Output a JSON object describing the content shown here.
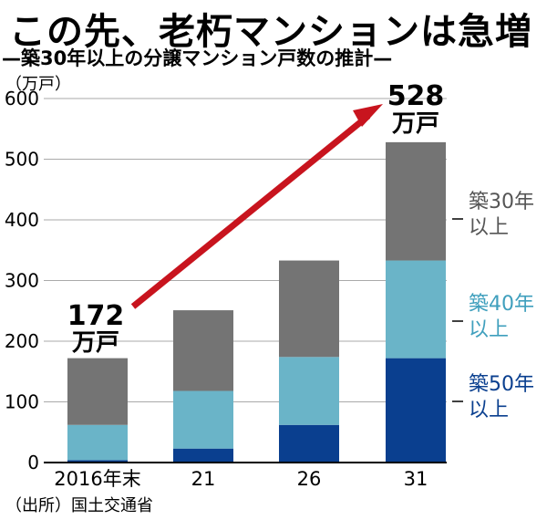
{
  "header": {
    "title": "この先、老朽マンションは急増",
    "subtitle": "—築30年以上の分譲マンション戸数の推計—",
    "unit": "（万戸）"
  },
  "source": "（出所）国土交通省",
  "chart_data": {
    "type": "bar",
    "stacked": true,
    "categories": [
      "2016年末",
      "21",
      "26",
      "31"
    ],
    "ylim": [
      0,
      600
    ],
    "yticks": [
      0,
      100,
      200,
      300,
      400,
      500,
      600
    ],
    "series": [
      {
        "name": "築50年以上",
        "values": [
          4,
          23,
          62,
          172
        ],
        "color": "#0a3f8f"
      },
      {
        "name": "築40年以上",
        "values": [
          58,
          95,
          112,
          161
        ],
        "color": "#6ab4c8"
      },
      {
        "name": "築30年以上",
        "values": [
          110,
          133,
          159,
          195
        ],
        "color": "#747474"
      }
    ],
    "legend_lines": [
      [
        "築30年",
        "以上"
      ],
      [
        "築40年",
        "以上"
      ],
      [
        "築50年",
        "以上"
      ]
    ],
    "annotations": {
      "start_value": "172",
      "end_value": "528",
      "value_unit": "万戸"
    },
    "arrow_color": "#c8141e"
  }
}
